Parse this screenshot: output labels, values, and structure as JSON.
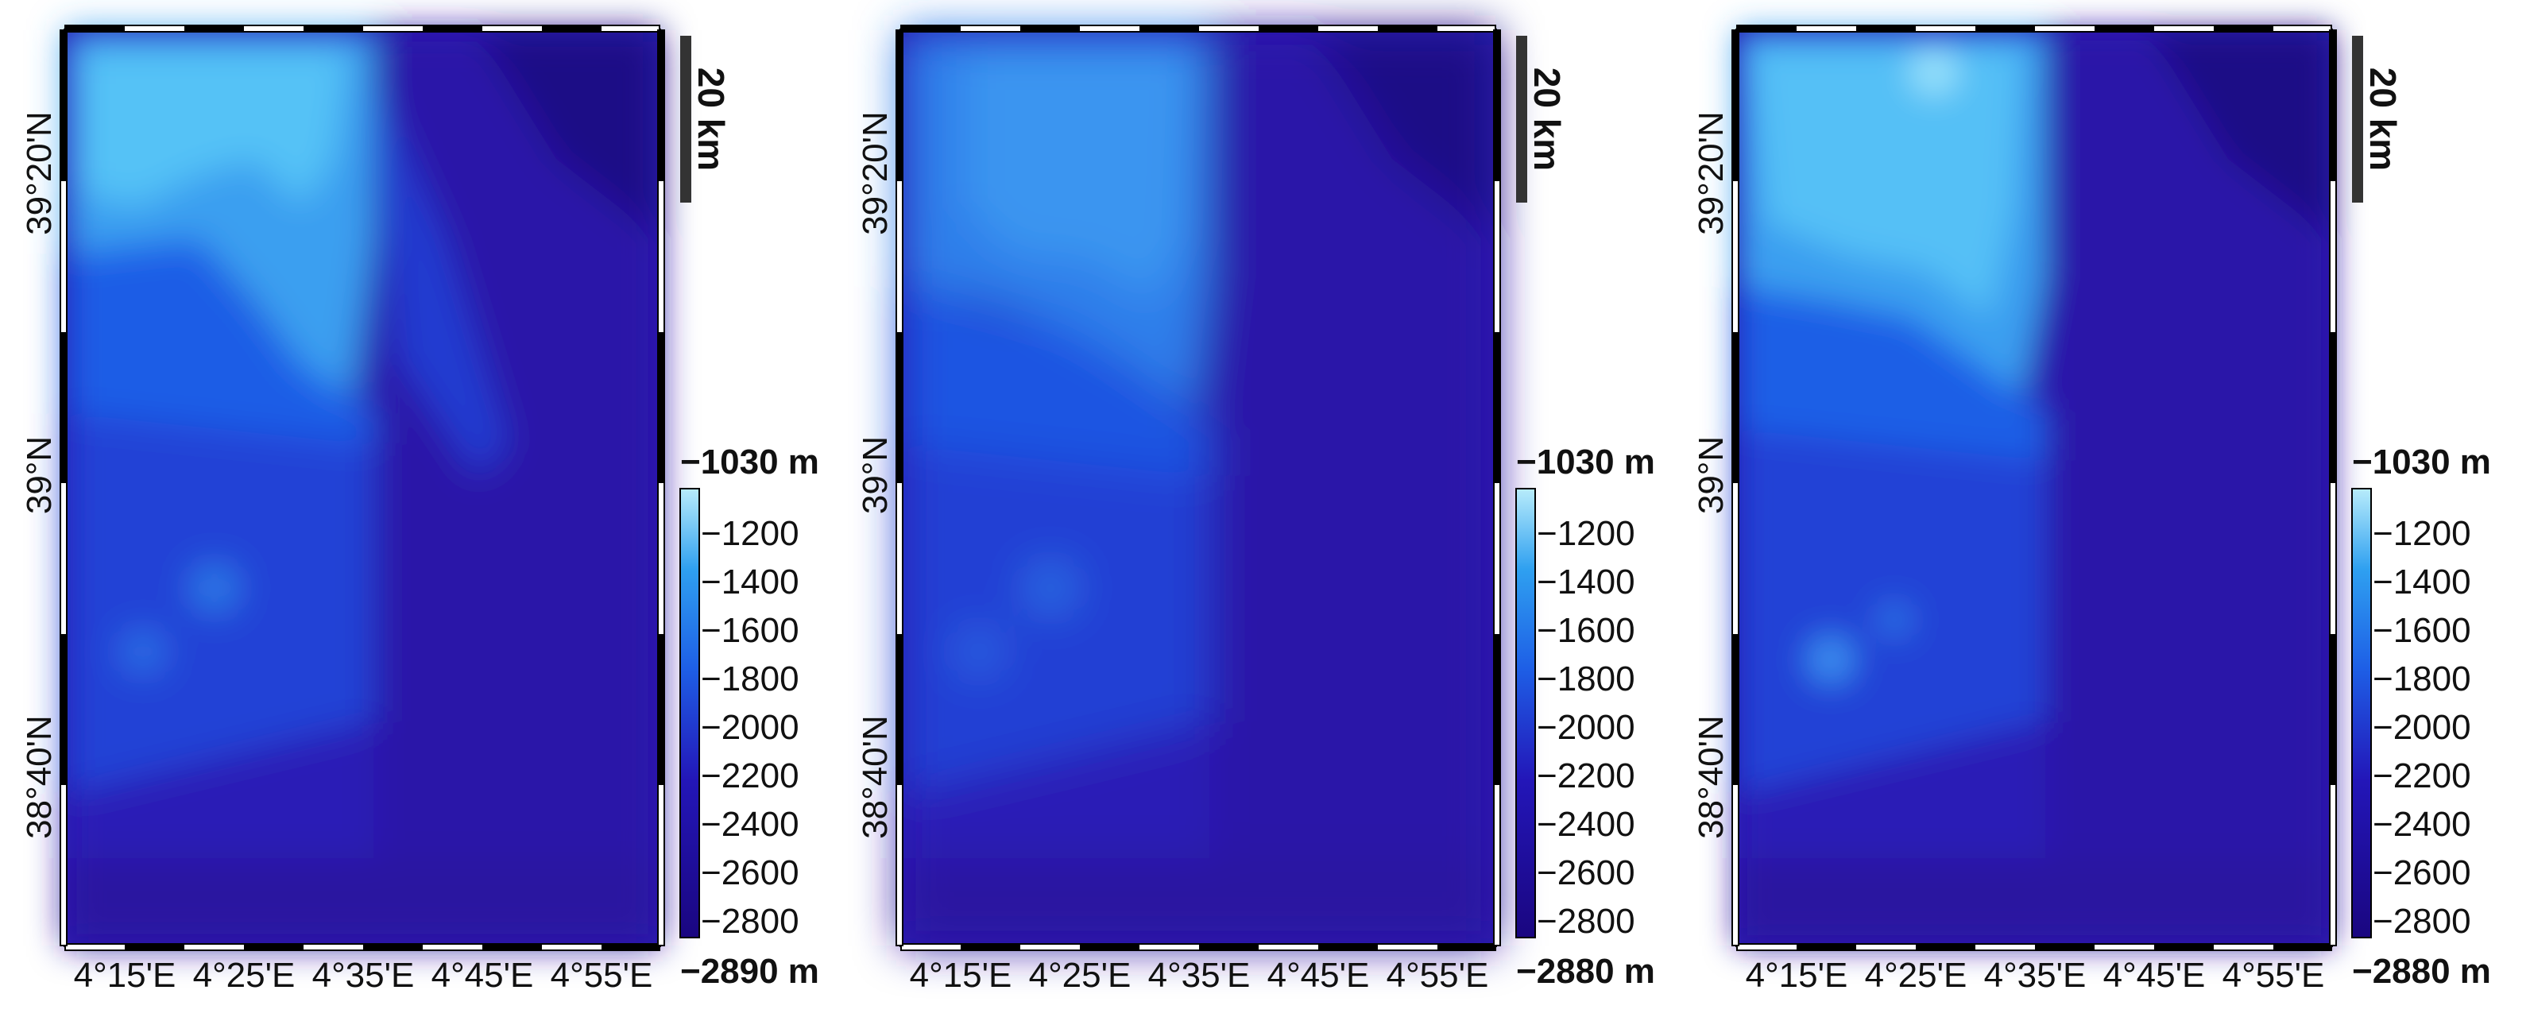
{
  "panels": [
    {
      "y_labels": [
        "39°20'N",
        "39°N",
        "38°40'N"
      ],
      "x_labels": [
        "4°15'E",
        "4°25'E",
        "4°35'E",
        "4°45'E",
        "4°55'E"
      ],
      "scale_bar": "20 km",
      "colorbar": {
        "max_label": "−1030 m",
        "min_label": "−2890 m",
        "ticks": [
          "−1200",
          "−1400",
          "−1600",
          "−1800",
          "−2000",
          "−2200",
          "−2400",
          "−2600",
          "−2800"
        ]
      }
    },
    {
      "y_labels": [
        "39°20'N",
        "39°N",
        "38°40'N"
      ],
      "x_labels": [
        "4°15'E",
        "4°25'E",
        "4°35'E",
        "4°45'E",
        "4°55'E"
      ],
      "scale_bar": "20 km",
      "colorbar": {
        "max_label": "−1030 m",
        "min_label": "−2880 m",
        "ticks": [
          "−1200",
          "−1400",
          "−1600",
          "−1800",
          "−2000",
          "−2200",
          "−2400",
          "−2600",
          "−2800"
        ]
      }
    },
    {
      "y_labels": [
        "39°20'N",
        "39°N",
        "38°40'N"
      ],
      "x_labels": [
        "4°15'E",
        "4°25'E",
        "4°35'E",
        "4°45'E",
        "4°55'E"
      ],
      "scale_bar": "20 km",
      "colorbar": {
        "max_label": "−1030 m",
        "min_label": "−2880 m",
        "ticks": [
          "−1200",
          "−1400",
          "−1600",
          "−1800",
          "−2000",
          "−2200",
          "−2400",
          "−2600",
          "−2800"
        ]
      }
    }
  ],
  "colors": {
    "shallow": "#6fd6f5",
    "mid": "#1a5be0",
    "deep": "#2a12a6",
    "deepest": "#1a0680"
  }
}
